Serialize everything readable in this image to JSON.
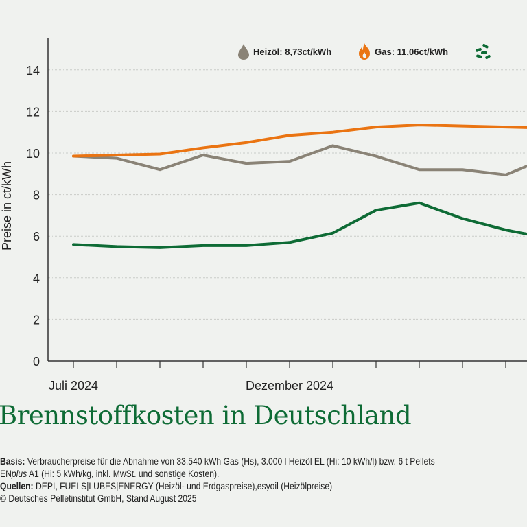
{
  "chart_data": {
    "type": "line",
    "title": "Brennstoffkosten in Deutschland",
    "ylabel": "Preise in ct/kWh",
    "xlabel": "",
    "ylim": [
      0,
      15.5
    ],
    "yticks": [
      0,
      2,
      4,
      6,
      8,
      10,
      12,
      14
    ],
    "grid": true,
    "x": [
      "2024-07",
      "2024-08",
      "2024-09",
      "2024-10",
      "2024-11",
      "2024-12",
      "2025-01",
      "2025-02",
      "2025-03",
      "2025-04",
      "2025-05",
      "2025-06"
    ],
    "xtick_labels": [
      {
        "at": "2024-07",
        "label": "Juli 2024"
      },
      {
        "at": "2024-12",
        "label": "Dezember 2024"
      }
    ],
    "legend_placement": "top-right",
    "series": [
      {
        "key": "heizoel",
        "color": "#8a8376",
        "values": [
          9.85,
          9.75,
          9.2,
          9.9,
          9.5,
          9.6,
          10.35,
          9.85,
          9.2,
          9.2,
          8.95,
          9.8
        ]
      },
      {
        "key": "gas",
        "color": "#ea7412",
        "values": [
          9.85,
          9.9,
          9.95,
          10.25,
          10.5,
          10.85,
          11.0,
          11.25,
          11.35,
          11.3,
          11.25,
          11.2
        ]
      },
      {
        "key": "pellets",
        "color": "#0e6b35",
        "values": [
          5.6,
          5.5,
          5.45,
          5.55,
          5.55,
          5.7,
          6.15,
          7.25,
          7.6,
          6.85,
          6.3,
          5.9
        ]
      }
    ]
  },
  "legend": [
    {
      "label": "Heizöl: 8,73ct/kWh",
      "icon": "oil-drop-icon",
      "color": "#8a8376"
    },
    {
      "label": "Gas: 11,06ct/kWh",
      "icon": "flame-icon",
      "color": "#ea7412"
    },
    {
      "label": "",
      "icon": "pellets-icon",
      "color": "#0e6b35"
    }
  ],
  "notes": {
    "basis_label": "Basis:",
    "basis_text": " Verbraucherpreise für die Abnahme von 33.540 kWh Gas (Hs), 3.000 l Heizöl EL (Hi: 10 kWh/l) bzw. 6 t Pellets",
    "basis_line2_prefix": "EN",
    "basis_line2_italic": "plus",
    "basis_line2_rest": " A1 (Hi: 5 kWh/kg, inkl. MwSt. und sonstige Kosten).",
    "sources_label": "Quellen:",
    "sources_text": " DEPI, FUELS|LUBES|ENERGY (Heizöl- und Erdgaspreise),esyoil (Heizölpreise)",
    "copyright": "© Deutsches Pelletinstitut GmbH, Stand August 2025"
  }
}
